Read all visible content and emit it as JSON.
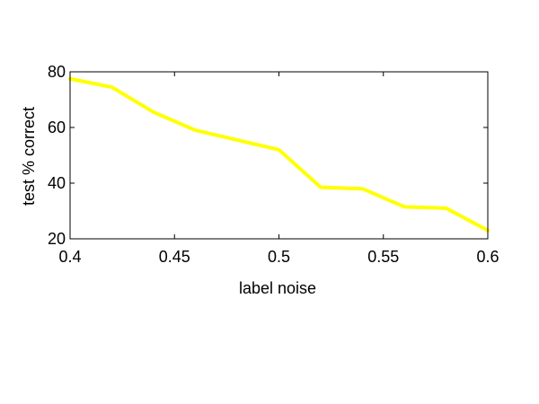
{
  "chart_data": {
    "type": "line",
    "xlabel": "label noise",
    "ylabel": "test % correct",
    "xlim": [
      0.4,
      0.6
    ],
    "ylim": [
      20,
      80
    ],
    "xticks": [
      0.4,
      0.45,
      0.5,
      0.55,
      0.6
    ],
    "xtick_labels": [
      "0.4",
      "0.45",
      "0.5",
      "0.55",
      "0.6"
    ],
    "yticks": [
      20,
      40,
      60,
      80
    ],
    "ytick_labels": [
      "20",
      "40",
      "60",
      "80"
    ],
    "grid": false,
    "series": [
      {
        "color": "#ffff00",
        "x": [
          0.4,
          0.42,
          0.44,
          0.46,
          0.48,
          0.5,
          0.52,
          0.54,
          0.56,
          0.58,
          0.6
        ],
        "y": [
          77.5,
          74.5,
          65.5,
          59,
          55.5,
          52,
          38.5,
          38,
          31.5,
          31,
          23
        ]
      }
    ]
  }
}
